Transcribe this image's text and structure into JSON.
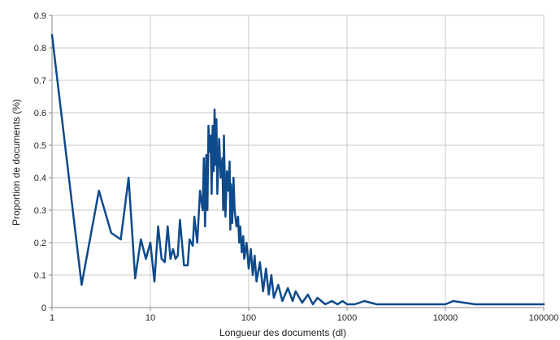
{
  "chart_data": {
    "type": "line",
    "title": "",
    "xlabel": "Longueur des documents (dl)",
    "ylabel": "Proportion de documents (%)",
    "x_scale": "log",
    "xlim": [
      1,
      100000
    ],
    "ylim": [
      0,
      0.9
    ],
    "x_ticks": [
      1,
      10,
      100,
      1000,
      10000,
      100000
    ],
    "x_tick_labels": [
      "1",
      "10",
      "100",
      "1000",
      "10000",
      "100000"
    ],
    "y_ticks": [
      0,
      0.1,
      0.2,
      0.3,
      0.4,
      0.5,
      0.6,
      0.7,
      0.8,
      0.9
    ],
    "y_tick_labels": [
      "0",
      "0.1",
      "0.2",
      "0.3",
      "0.4",
      "0.5",
      "0.6",
      "0.7",
      "0.8",
      "0.9"
    ],
    "grid": true,
    "legend": "none",
    "line_color": "#0f4a8a",
    "grid_color": "#c8c8c8",
    "series": [
      {
        "x": [
          1,
          2,
          3,
          4,
          5,
          6,
          7,
          8,
          9,
          10,
          11,
          12,
          13,
          14,
          15,
          16,
          17,
          18,
          19,
          20,
          22,
          24,
          25,
          27,
          28,
          30,
          32,
          34,
          35,
          36,
          37,
          38,
          39,
          40,
          41,
          42,
          43,
          44,
          45,
          46,
          47,
          48,
          50,
          52,
          54,
          55,
          56,
          58,
          60,
          62,
          64,
          65,
          66,
          68,
          70,
          72,
          75,
          78,
          80,
          82,
          85,
          88,
          90,
          95,
          100,
          105,
          110,
          115,
          120,
          130,
          140,
          150,
          160,
          170,
          180,
          200,
          220,
          250,
          280,
          300,
          350,
          400,
          450,
          500,
          600,
          700,
          800,
          900,
          1000,
          1200,
          1500,
          2000,
          2500,
          3000,
          5000,
          7000,
          10000,
          12000,
          20000,
          50000,
          80000,
          100000
        ],
        "y": [
          0.84,
          0.07,
          0.36,
          0.23,
          0.21,
          0.4,
          0.09,
          0.21,
          0.15,
          0.2,
          0.08,
          0.25,
          0.15,
          0.14,
          0.25,
          0.15,
          0.18,
          0.15,
          0.16,
          0.27,
          0.13,
          0.13,
          0.21,
          0.19,
          0.28,
          0.2,
          0.36,
          0.3,
          0.46,
          0.25,
          0.47,
          0.3,
          0.56,
          0.48,
          0.53,
          0.35,
          0.56,
          0.42,
          0.61,
          0.44,
          0.58,
          0.35,
          0.52,
          0.4,
          0.46,
          0.3,
          0.53,
          0.28,
          0.42,
          0.36,
          0.45,
          0.24,
          0.38,
          0.26,
          0.4,
          0.3,
          0.25,
          0.28,
          0.2,
          0.25,
          0.17,
          0.22,
          0.15,
          0.2,
          0.12,
          0.18,
          0.1,
          0.16,
          0.08,
          0.14,
          0.05,
          0.12,
          0.04,
          0.1,
          0.03,
          0.07,
          0.02,
          0.06,
          0.02,
          0.05,
          0.015,
          0.04,
          0.01,
          0.03,
          0.01,
          0.02,
          0.01,
          0.02,
          0.01,
          0.01,
          0.02,
          0.01,
          0.01,
          0.01,
          0.01,
          0.01,
          0.01,
          0.02,
          0.01,
          0.01,
          0.01,
          0.01
        ]
      }
    ]
  }
}
